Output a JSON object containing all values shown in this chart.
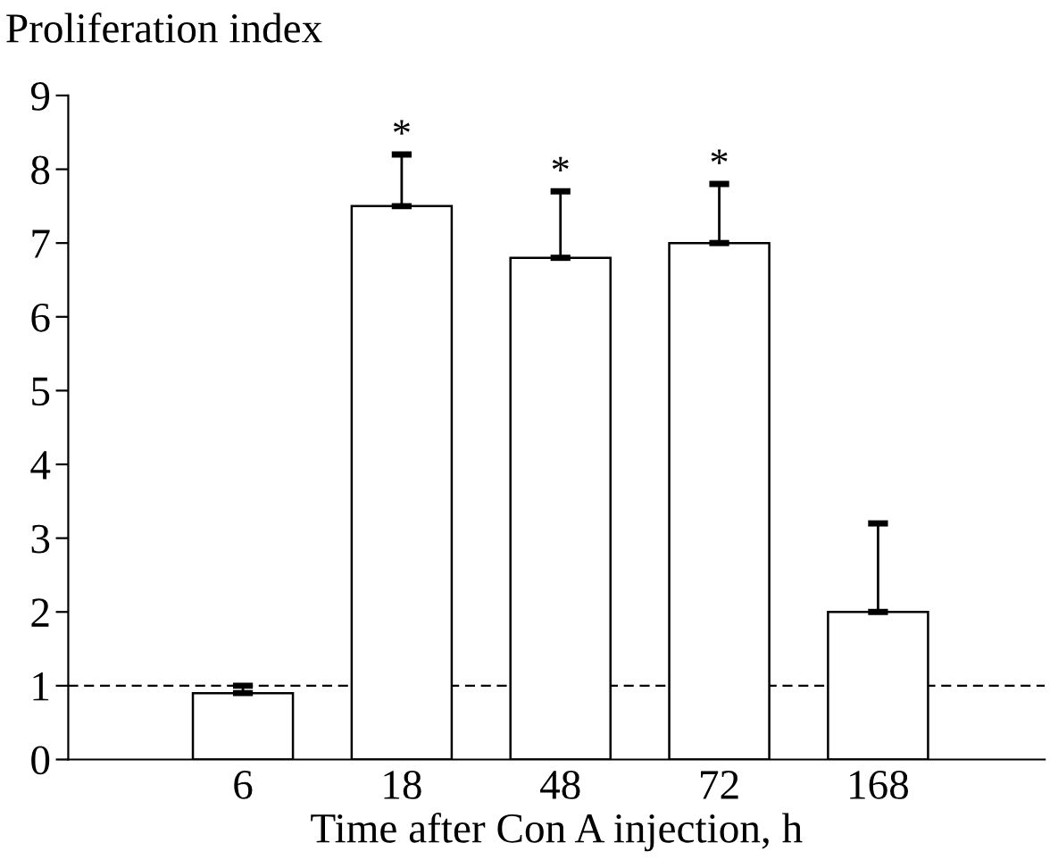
{
  "chart_data": {
    "type": "bar",
    "ylabel": "Proliferation index",
    "xlabel": "Time after Con A injection, h",
    "categories": [
      "6",
      "18",
      "48",
      "72",
      "168"
    ],
    "values": [
      0.9,
      7.5,
      6.8,
      7.0,
      2.0
    ],
    "errors": [
      [
        0.9,
        1.0
      ],
      [
        7.5,
        8.2
      ],
      [
        6.8,
        7.7
      ],
      [
        7.0,
        7.8
      ],
      [
        2.0,
        3.2
      ]
    ],
    "color": "#ffffff",
    "ylim": [
      0,
      9
    ],
    "yticks": [
      0,
      1,
      2,
      3,
      4,
      5,
      6,
      7,
      8,
      9
    ],
    "ref_lines": [
      {
        "axis": "y",
        "value": 1,
        "line_style": "dashed",
        "color": "#000000"
      }
    ],
    "annotations": [
      {
        "text": "*",
        "x": "18",
        "y": 8.2
      },
      {
        "text": "*",
        "x": "48",
        "y": 7.7
      },
      {
        "text": "*",
        "x": "72",
        "y": 7.8
      }
    ],
    "grid": false,
    "legend": false
  }
}
